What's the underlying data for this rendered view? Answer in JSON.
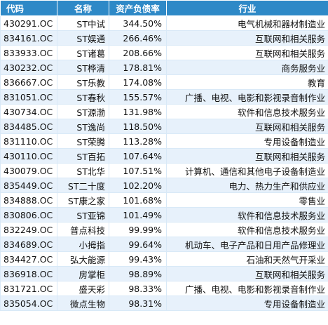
{
  "table": {
    "headers": {
      "code": "代码",
      "name": "名称",
      "ratio": "资产负债率",
      "industry": "行业"
    },
    "rows": [
      {
        "code": "430291.OC",
        "name": "ST中试",
        "ratio": "344.50%",
        "industry": "电气机械和器材制造业"
      },
      {
        "code": "834161.OC",
        "name": "ST娱通",
        "ratio": "266.46%",
        "industry": "互联网和相关服务"
      },
      {
        "code": "833933.OC",
        "name": "ST诸葛",
        "ratio": "208.66%",
        "industry": "互联网和相关服务"
      },
      {
        "code": "430232.OC",
        "name": "ST桦清",
        "ratio": "178.81%",
        "industry": "商务服务业"
      },
      {
        "code": "836667.OC",
        "name": "ST乐教",
        "ratio": "174.08%",
        "industry": "教育"
      },
      {
        "code": "831051.OC",
        "name": "ST春秋",
        "ratio": "155.57%",
        "industry": "广播、电视、电影和影视录音制作业"
      },
      {
        "code": "430734.OC",
        "name": "ST源渤",
        "ratio": "131.98%",
        "industry": "软件和信息技术服务业"
      },
      {
        "code": "834485.OC",
        "name": "ST逸尚",
        "ratio": "118.50%",
        "industry": "互联网和相关服务"
      },
      {
        "code": "831110.OC",
        "name": "ST荣腾",
        "ratio": "113.28%",
        "industry": "专用设备制造业"
      },
      {
        "code": "430110.OC",
        "name": "ST百拓",
        "ratio": "107.64%",
        "industry": "互联网和相关服务"
      },
      {
        "code": "430079.OC",
        "name": "ST北华",
        "ratio": "107.51%",
        "industry": "计算机、通信和其他电子设备制造业"
      },
      {
        "code": "835449.OC",
        "name": "ST二十度",
        "ratio": "102.20%",
        "industry": "电力、热力生产和供应业"
      },
      {
        "code": "834888.OC",
        "name": "ST康之家",
        "ratio": "101.68%",
        "industry": "零售业"
      },
      {
        "code": "830806.OC",
        "name": "ST亚锦",
        "ratio": "101.49%",
        "industry": "软件和信息技术服务业"
      },
      {
        "code": "832249.OC",
        "name": "普点科技",
        "ratio": "99.99%",
        "industry": "软件和信息技术服务业"
      },
      {
        "code": "834689.OC",
        "name": "小拇指",
        "ratio": "99.64%",
        "industry": "机动车、电子产品和日用产品修理业"
      },
      {
        "code": "834427.OC",
        "name": "弘大能源",
        "ratio": "99.43%",
        "industry": "石油和天然气开采业"
      },
      {
        "code": "836918.OC",
        "name": "房掌柜",
        "ratio": "98.89%",
        "industry": "互联网和相关服务"
      },
      {
        "code": "831721.OC",
        "name": "盛天彩",
        "ratio": "98.33%",
        "industry": "广播、电视、电影和影视录音制作业"
      },
      {
        "code": "835054.OC",
        "name": "微点生物",
        "ratio": "98.31%",
        "industry": "专用设备制造业"
      }
    ]
  }
}
